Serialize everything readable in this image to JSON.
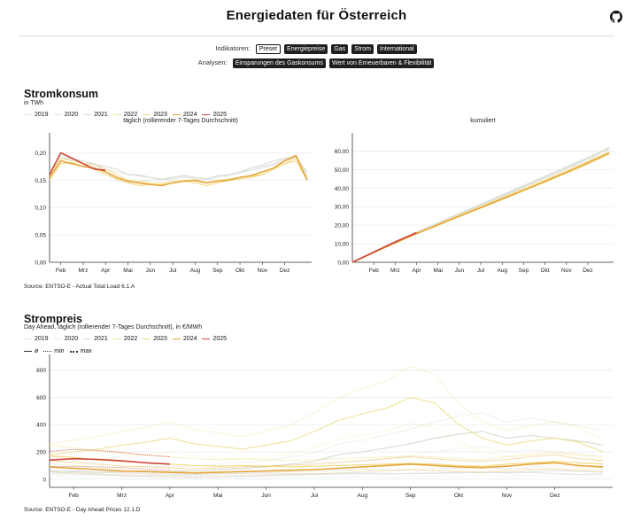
{
  "header": {
    "title": "Energiedaten für Österreich",
    "github_icon": "github-icon"
  },
  "nav": {
    "indicators_label": "Indikatoren:",
    "indicators": [
      "Preset",
      "Energiepreise",
      "Gas",
      "Strom",
      "International"
    ],
    "active_indicator": "Preset",
    "analyses_label": "Analysen:",
    "analyses": [
      "Einsparungen des Gaskonsums",
      "Wert von Erneuerbaren & Flexibilität"
    ]
  },
  "colors": {
    "2019": "#e6e6e6",
    "2020": "#e0e4ea",
    "2021": "#d8dccc",
    "2022": "#efe49a",
    "2023": "#f2d97a",
    "2024": "#e6a53a",
    "2025": "#d0453b"
  },
  "consumption": {
    "title": "Stromkonsum",
    "unit": "in TWh",
    "source": "Source: ENTSO-E - Actual Total Load 6.1.A"
  },
  "price": {
    "title": "Strompreis",
    "subtitle": "Day Ahead, täglich (rollierender 7-Tages Durchschnitt), in €/MWh",
    "legend_stats": [
      "ø",
      "min",
      "max"
    ],
    "source": "Source: ENTSO-E - Day Ahead Prices 12.1.D"
  },
  "chart_data": [
    {
      "type": "line",
      "title": "täglich (rollierender 7-Tages Durchschnitt)",
      "ylim": [
        0,
        0.22
      ],
      "yticks": [
        "0,00",
        "0,05",
        "0,10",
        "0,15",
        "0,20"
      ],
      "ytick_values": [
        0,
        0.05,
        0.1,
        0.15,
        0.2
      ],
      "xticks": [
        "Feb",
        "Mrz",
        "Apr",
        "Mai",
        "Jun",
        "Jul",
        "Aug",
        "Sep",
        "Okt",
        "Nov",
        "Dez"
      ],
      "legend": [
        "2019",
        "2020",
        "2021",
        "2022",
        "2023",
        "2024",
        "2025"
      ],
      "x_months": [
        0.5,
        1,
        1.5,
        2,
        2.5,
        3,
        3.5,
        4,
        4.5,
        5,
        5.5,
        6,
        6.5,
        7,
        7.5,
        8,
        8.5,
        9,
        9.5,
        10,
        10.5,
        11,
        11.5,
        12
      ],
      "series": [
        {
          "name": "2019",
          "values": [
            0.16,
            0.19,
            0.19,
            0.18,
            0.18,
            0.17,
            0.165,
            0.16,
            0.16,
            0.155,
            0.15,
            0.152,
            0.155,
            0.152,
            0.15,
            0.155,
            0.158,
            0.163,
            0.168,
            0.172,
            0.178,
            0.185,
            0.19,
            0.165
          ]
        },
        {
          "name": "2020",
          "values": [
            0.165,
            0.195,
            0.19,
            0.185,
            0.18,
            0.165,
            0.15,
            0.145,
            0.148,
            0.15,
            0.15,
            0.155,
            0.158,
            0.155,
            0.152,
            0.158,
            0.16,
            0.165,
            0.168,
            0.175,
            0.18,
            0.188,
            0.195,
            0.16
          ]
        },
        {
          "name": "2021",
          "values": [
            0.16,
            0.19,
            0.188,
            0.185,
            0.178,
            0.175,
            0.17,
            0.16,
            0.158,
            0.155,
            0.152,
            0.155,
            0.158,
            0.155,
            0.152,
            0.158,
            0.16,
            0.165,
            0.172,
            0.178,
            0.185,
            0.19,
            0.192,
            0.165
          ]
        },
        {
          "name": "2022",
          "values": [
            0.16,
            0.19,
            0.185,
            0.18,
            0.178,
            0.17,
            0.16,
            0.15,
            0.148,
            0.145,
            0.145,
            0.148,
            0.15,
            0.148,
            0.145,
            0.15,
            0.152,
            0.155,
            0.158,
            0.16,
            0.17,
            0.18,
            0.19,
            0.155
          ]
        },
        {
          "name": "2023",
          "values": [
            0.15,
            0.18,
            0.182,
            0.175,
            0.17,
            0.16,
            0.152,
            0.145,
            0.14,
            0.142,
            0.142,
            0.145,
            0.148,
            0.145,
            0.14,
            0.145,
            0.15,
            0.152,
            0.155,
            0.16,
            0.17,
            0.18,
            0.185,
            0.15
          ]
        },
        {
          "name": "2024",
          "values": [
            0.155,
            0.185,
            0.18,
            0.175,
            0.172,
            0.165,
            0.155,
            0.148,
            0.145,
            0.142,
            0.14,
            0.145,
            0.148,
            0.15,
            0.145,
            0.148,
            0.15,
            0.155,
            0.158,
            0.165,
            0.172,
            0.185,
            0.195,
            0.15
          ]
        },
        {
          "name": "2025",
          "values": [
            0.16,
            0.2,
            0.19,
            0.18,
            0.17,
            0.168
          ]
        }
      ]
    },
    {
      "type": "line",
      "title": "kumuliert",
      "ylim": [
        0,
        65
      ],
      "yticks": [
        "0,00",
        "10,00",
        "20,00",
        "30,00",
        "40,00",
        "50,00",
        "60,00"
      ],
      "ytick_values": [
        0,
        10,
        20,
        30,
        40,
        50,
        60
      ],
      "xticks": [
        "Feb",
        "Mrz",
        "Apr",
        "Mai",
        "Jun",
        "Jul",
        "Aug",
        "Sep",
        "Okt",
        "Nov",
        "Dez"
      ],
      "x_months": [
        0,
        1,
        2,
        3,
        4,
        5,
        6,
        7,
        8,
        9,
        10,
        11,
        12
      ],
      "series": [
        {
          "name": "2019",
          "values": [
            0,
            5.5,
            11,
            16.5,
            21.5,
            26.5,
            31.5,
            36.5,
            41.5,
            46.5,
            51.5,
            56.5,
            62
          ]
        },
        {
          "name": "2020",
          "values": [
            0,
            5.6,
            11,
            16.2,
            21,
            25.8,
            30.6,
            35.5,
            40.5,
            45.5,
            50.5,
            55.7,
            61.3
          ]
        },
        {
          "name": "2021",
          "values": [
            0,
            5.5,
            10.8,
            16,
            21,
            26,
            31,
            36,
            41,
            46,
            51,
            56,
            61.5
          ]
        },
        {
          "name": "2022",
          "values": [
            0,
            5.4,
            10.6,
            15.7,
            20.6,
            25.4,
            30.2,
            35,
            39.8,
            44.6,
            49.6,
            54.7,
            60
          ]
        },
        {
          "name": "2023",
          "values": [
            0,
            5.2,
            10.3,
            15.3,
            20,
            24.6,
            29.2,
            33.8,
            38.5,
            43.2,
            48,
            53,
            58.5
          ]
        },
        {
          "name": "2024",
          "values": [
            0,
            5.3,
            10.5,
            15.5,
            20.2,
            24.9,
            29.5,
            34.2,
            38.9,
            43.7,
            48.6,
            53.7,
            59
          ]
        },
        {
          "name": "2025",
          "values": [
            0,
            5.5,
            11,
            16
          ]
        }
      ]
    },
    {
      "type": "line",
      "title": "",
      "ylim": [
        -60,
        850
      ],
      "yticks": [
        "0",
        "200",
        "400",
        "600",
        "800"
      ],
      "ytick_values": [
        0,
        200,
        400,
        600,
        800
      ],
      "xticks": [
        "Feb",
        "Mrz",
        "Apr",
        "Mai",
        "Jun",
        "Jul",
        "Aug",
        "Sep",
        "Okt",
        "Nov",
        "Dez"
      ],
      "legend": [
        "2019",
        "2020",
        "2021",
        "2022",
        "2023",
        "2024",
        "2025"
      ],
      "x_months": [
        0.5,
        1,
        1.5,
        2,
        2.5,
        3,
        3.5,
        4,
        4.5,
        5,
        5.5,
        6,
        6.5,
        7,
        7.5,
        8,
        8.5,
        9,
        9.5,
        10,
        10.5,
        11,
        11.5,
        12
      ],
      "series": [
        {
          "name": "2019",
          "stat": "ø",
          "values": [
            55,
            60,
            50,
            45,
            40,
            38,
            35,
            40,
            42,
            45,
            40,
            38,
            42,
            45,
            40,
            42,
            45,
            50,
            48,
            50,
            55,
            60,
            58,
            50
          ]
        },
        {
          "name": "2020",
          "stat": "ø",
          "values": [
            45,
            40,
            35,
            25,
            20,
            15,
            10,
            15,
            20,
            25,
            30,
            35,
            38,
            40,
            38,
            40,
            42,
            45,
            50,
            45,
            48,
            40,
            35,
            38
          ]
        },
        {
          "name": "2021",
          "stat": "ø",
          "values": [
            60,
            55,
            50,
            55,
            60,
            55,
            60,
            70,
            80,
            90,
            110,
            130,
            180,
            200,
            230,
            260,
            300,
            330,
            350,
            300,
            320,
            300,
            280,
            250
          ]
        },
        {
          "name": "2022",
          "stat": "ø",
          "values": [
            180,
            200,
            220,
            250,
            270,
            300,
            260,
            240,
            220,
            250,
            280,
            350,
            430,
            480,
            520,
            600,
            560,
            400,
            300,
            250,
            280,
            300,
            270,
            200
          ]
        },
        {
          "name": "2023",
          "stat": "ø",
          "values": [
            170,
            160,
            140,
            130,
            120,
            110,
            100,
            95,
            100,
            95,
            90,
            95,
            100,
            105,
            110,
            115,
            110,
            100,
            95,
            110,
            120,
            130,
            120,
            110
          ]
        },
        {
          "name": "2024",
          "stat": "ø",
          "values": [
            90,
            80,
            70,
            60,
            55,
            50,
            45,
            50,
            55,
            60,
            65,
            70,
            80,
            90,
            100,
            110,
            100,
            90,
            85,
            95,
            110,
            120,
            100,
            90
          ]
        },
        {
          "name": "2025",
          "stat": "ø",
          "values": [
            140,
            150,
            145,
            135,
            120,
            110
          ]
        }
      ]
    }
  ]
}
